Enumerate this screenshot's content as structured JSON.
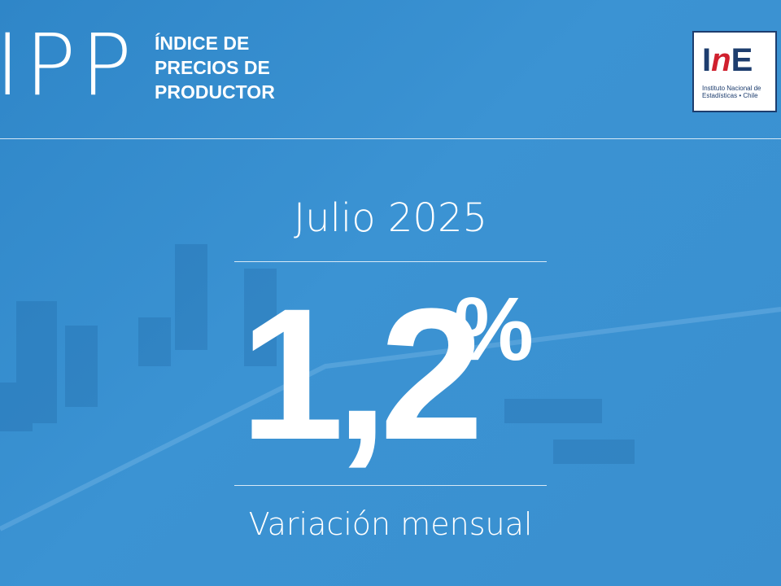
{
  "header": {
    "acronym": "IPP",
    "title_lines": [
      "ÍNDICE DE",
      "PRECIOS DE",
      "PRODUCTOR"
    ]
  },
  "logo": {
    "mark": "INE",
    "sub_lines": [
      "Instituto Nacional de",
      "Estadísticas • Chile"
    ],
    "colors": {
      "navy": "#1d3d6e",
      "red": "#d0202e"
    }
  },
  "main": {
    "period": "Julio 2025",
    "value": "1,2",
    "unit": "%",
    "caption": "Variación mensual"
  },
  "colors": {
    "background": "#3a8fcf",
    "text": "#ffffff"
  }
}
